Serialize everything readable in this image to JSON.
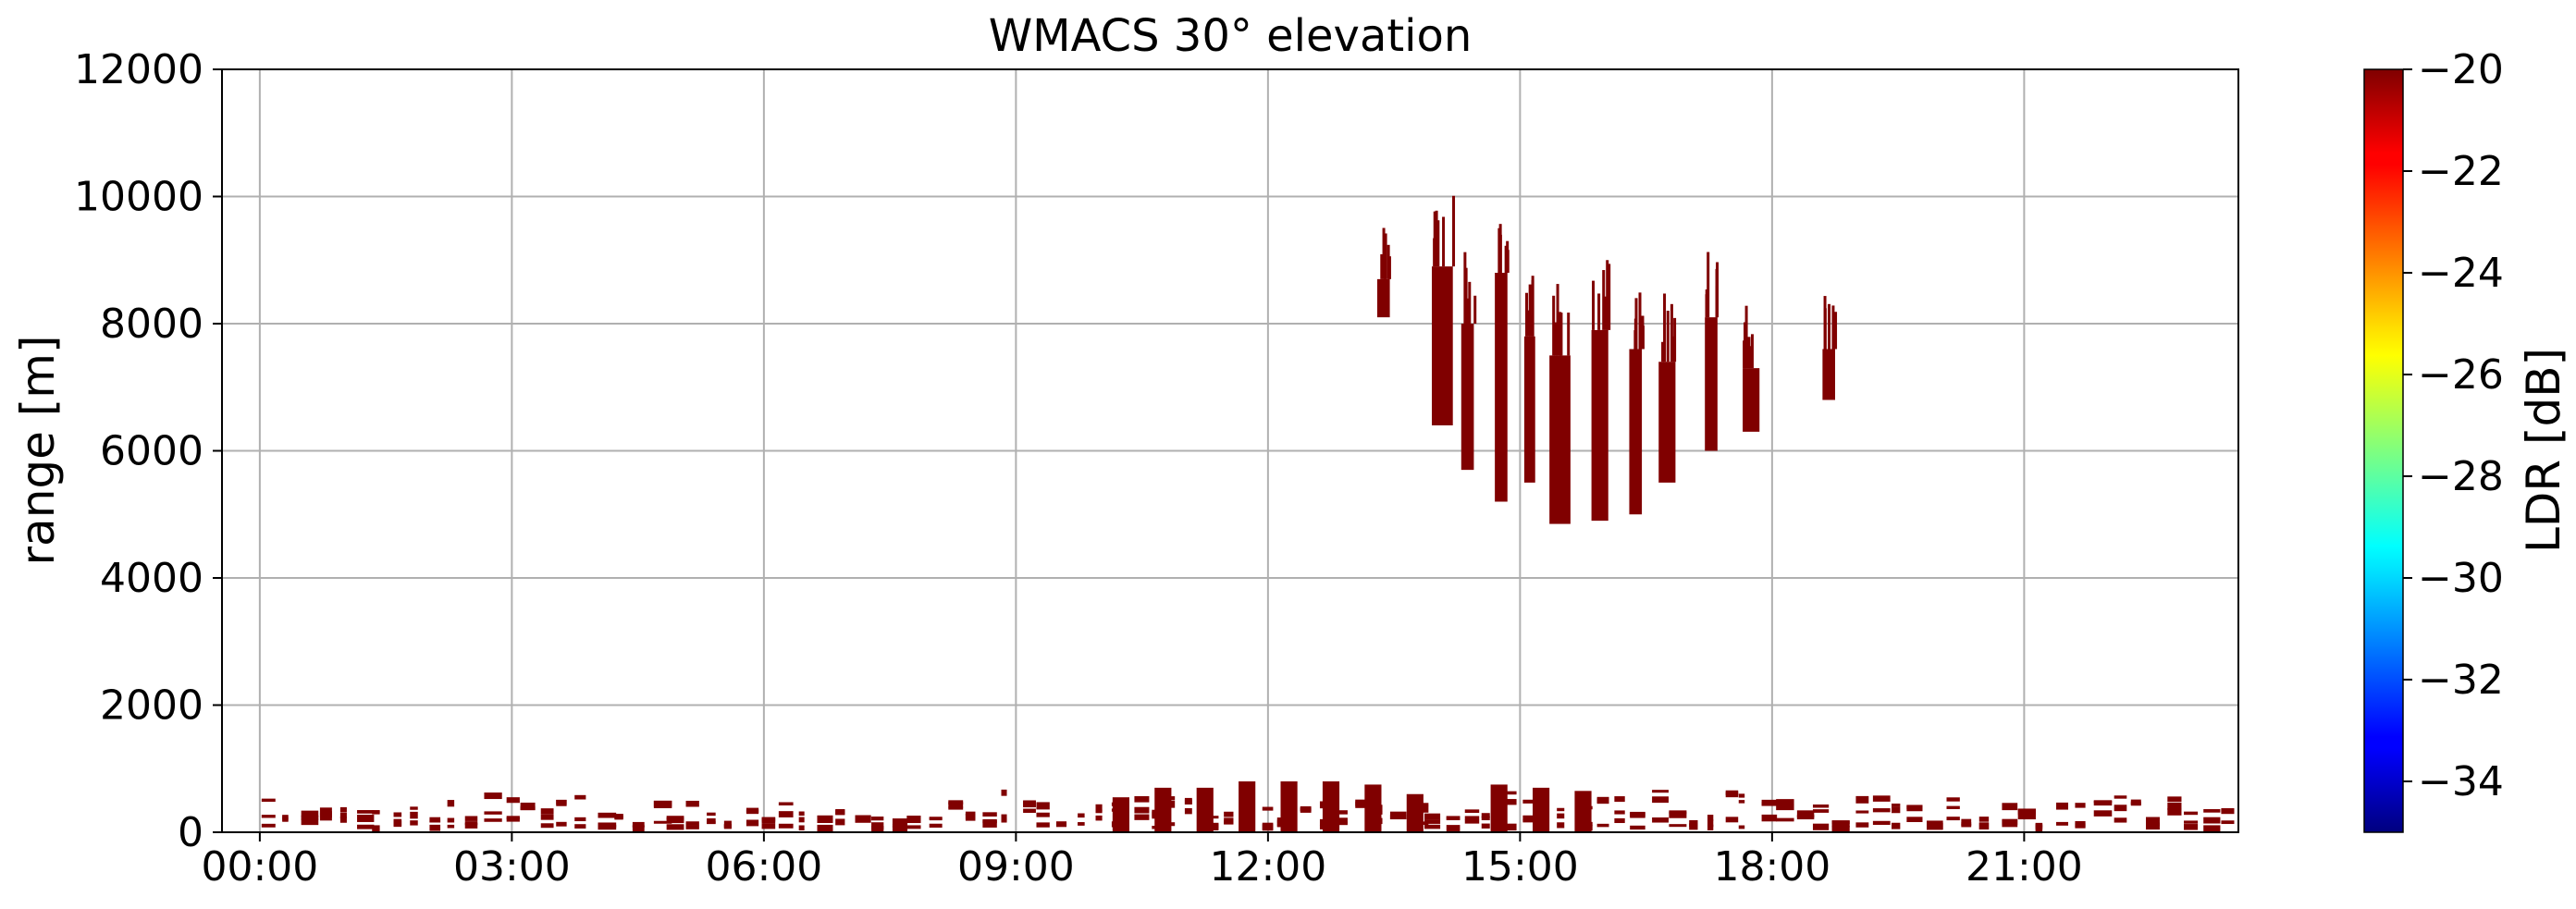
{
  "chart_data": {
    "type": "heatmap",
    "title": "WMACS 30° elevation",
    "xlabel": "",
    "ylabel": "range [m]",
    "x_ticks": [
      "00:00",
      "03:00",
      "06:00",
      "09:00",
      "12:00",
      "15:00",
      "18:00",
      "21:00"
    ],
    "x_tick_hours": [
      0,
      3,
      6,
      9,
      12,
      15,
      18,
      21
    ],
    "xlim_hours": [
      -0.45,
      23.55
    ],
    "y_ticks": [
      "0",
      "2000",
      "4000",
      "6000",
      "8000",
      "10000",
      "12000"
    ],
    "y_tick_values": [
      0,
      2000,
      4000,
      6000,
      8000,
      10000,
      12000
    ],
    "ylim": [
      0,
      12000
    ],
    "grid": true,
    "colorbar": {
      "label": "LDR [dB]",
      "colormap": "jet",
      "range": [
        -35,
        -20
      ],
      "ticks": [
        "−20",
        "−22",
        "−24",
        "−26",
        "−28",
        "−30",
        "−32",
        "−34"
      ],
      "tick_values": [
        -20,
        -22,
        -24,
        -26,
        -28,
        -30,
        -31.999,
        -34
      ]
    },
    "dominant_value_db": -20,
    "dominant_color": "#800000",
    "upper_cloud_columns": [
      {
        "t0": 13.3,
        "t1": 13.45,
        "bottom": 8100,
        "top": 8700
      },
      {
        "t0": 13.95,
        "t1": 14.2,
        "bottom": 6400,
        "top": 8900
      },
      {
        "t0": 14.3,
        "t1": 14.45,
        "bottom": 5700,
        "top": 8000
      },
      {
        "t0": 14.7,
        "t1": 14.85,
        "bottom": 5200,
        "top": 8800
      },
      {
        "t0": 15.05,
        "t1": 15.18,
        "bottom": 5500,
        "top": 7800
      },
      {
        "t0": 15.35,
        "t1": 15.6,
        "bottom": 4850,
        "top": 7500
      },
      {
        "t0": 15.85,
        "t1": 16.05,
        "bottom": 4900,
        "top": 7900
      },
      {
        "t0": 16.3,
        "t1": 16.45,
        "bottom": 5000,
        "top": 7600
      },
      {
        "t0": 16.65,
        "t1": 16.85,
        "bottom": 5500,
        "top": 7400
      },
      {
        "t0": 17.2,
        "t1": 17.35,
        "bottom": 6000,
        "top": 8100
      },
      {
        "t0": 17.65,
        "t1": 17.85,
        "bottom": 6300,
        "top": 7300
      },
      {
        "t0": 18.6,
        "t1": 18.75,
        "bottom": 6800,
        "top": 7600
      }
    ],
    "low_echo_columns": [
      {
        "t0": 10.15,
        "t1": 10.35,
        "top": 550
      },
      {
        "t0": 10.65,
        "t1": 10.85,
        "top": 700
      },
      {
        "t0": 11.15,
        "t1": 11.35,
        "top": 700
      },
      {
        "t0": 11.65,
        "t1": 11.85,
        "top": 800
      },
      {
        "t0": 12.15,
        "t1": 12.35,
        "top": 800
      },
      {
        "t0": 12.65,
        "t1": 12.85,
        "top": 800
      },
      {
        "t0": 13.15,
        "t1": 13.35,
        "top": 750
      },
      {
        "t0": 13.65,
        "t1": 13.85,
        "top": 600
      },
      {
        "t0": 14.65,
        "t1": 14.85,
        "top": 750
      },
      {
        "t0": 15.15,
        "t1": 15.35,
        "top": 700
      },
      {
        "t0": 15.65,
        "t1": 15.85,
        "top": 650
      }
    ],
    "boundary_layer_top": 700
  }
}
